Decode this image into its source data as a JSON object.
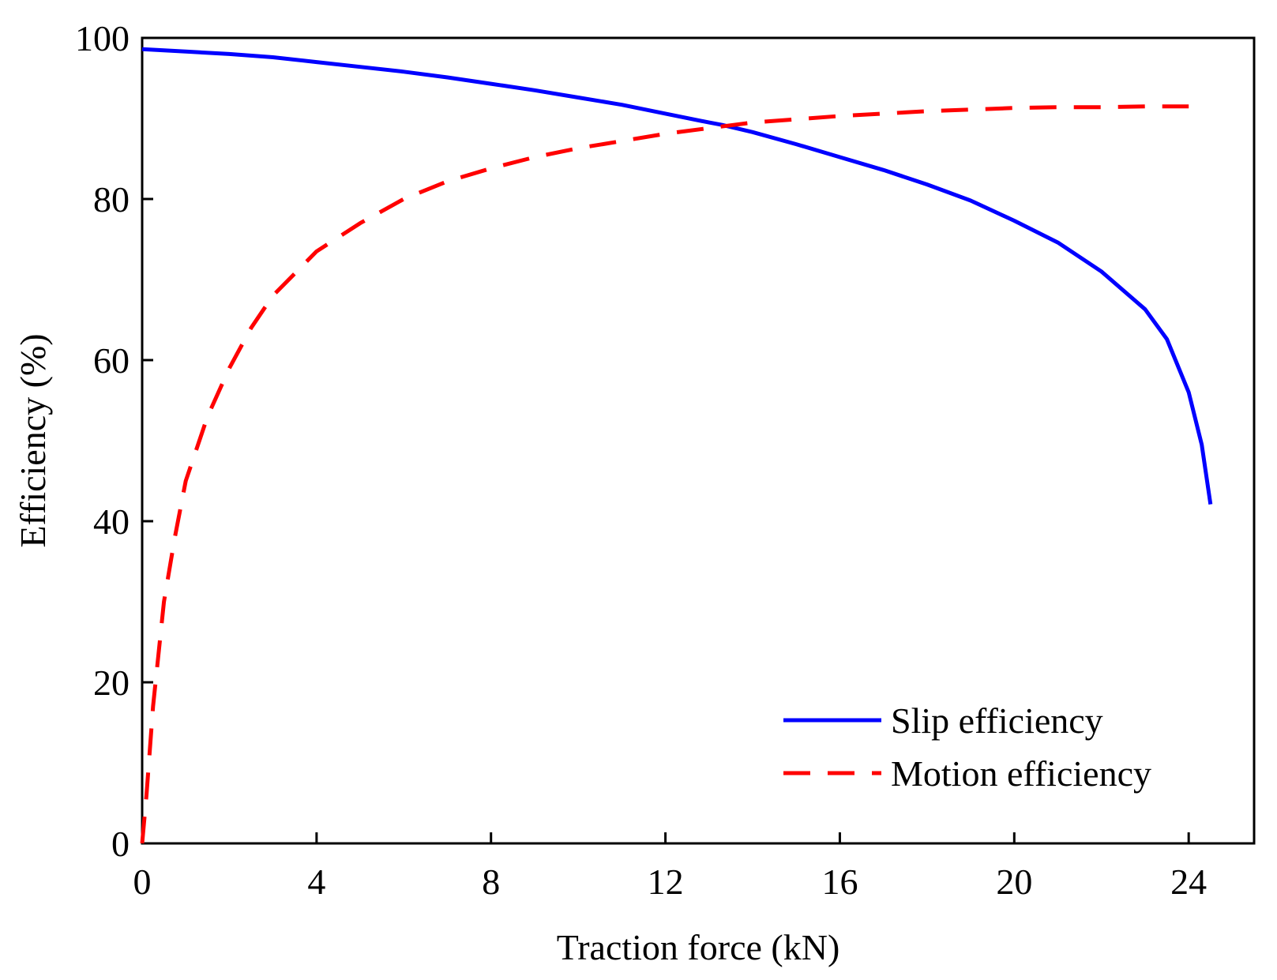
{
  "chart_data": {
    "type": "line",
    "title": "",
    "xlabel": "Traction force (kN)",
    "ylabel": "Efficiency (%)",
    "xlim": [
      0,
      25.5
    ],
    "ylim": [
      0,
      100
    ],
    "xticks": [
      0,
      4,
      8,
      12,
      16,
      20,
      24
    ],
    "yticks": [
      0,
      20,
      40,
      60,
      80,
      100
    ],
    "grid": false,
    "legend_position": "bottom-right",
    "series": [
      {
        "name": "Slip efficiency",
        "color": "#0000ff",
        "style": "solid",
        "x": [
          0,
          1,
          2,
          3,
          4,
          5,
          6,
          7,
          8,
          9,
          10,
          11,
          12,
          13,
          13.3,
          14,
          15,
          16,
          17,
          18,
          19,
          20,
          21,
          22,
          23,
          23.5,
          24,
          24.3,
          24.5
        ],
        "y": [
          98.6,
          98.3,
          98.0,
          97.6,
          97.0,
          96.4,
          95.8,
          95.1,
          94.3,
          93.5,
          92.6,
          91.7,
          90.6,
          89.5,
          89.2,
          88.3,
          86.8,
          85.2,
          83.6,
          81.8,
          79.8,
          77.3,
          74.6,
          71.0,
          66.3,
          62.6,
          56.0,
          49.5,
          42.1
        ]
      },
      {
        "name": "Motion efficiency",
        "color": "#ff0000",
        "style": "dashed",
        "x": [
          0,
          0.1,
          0.25,
          0.5,
          0.75,
          1,
          1.5,
          2,
          2.5,
          3,
          4,
          5,
          6,
          7,
          8,
          9,
          10,
          11,
          12,
          13,
          14,
          15,
          16,
          17,
          18,
          19,
          20,
          21,
          22,
          23,
          24
        ],
        "y": [
          0,
          6,
          17,
          30,
          38,
          45,
          53,
          59,
          64,
          68,
          73.5,
          77,
          80,
          82.2,
          83.8,
          85.2,
          86.3,
          87.2,
          88.1,
          88.8,
          89.5,
          89.9,
          90.3,
          90.6,
          90.9,
          91.1,
          91.3,
          91.4,
          91.4,
          91.5,
          91.5
        ]
      }
    ]
  }
}
